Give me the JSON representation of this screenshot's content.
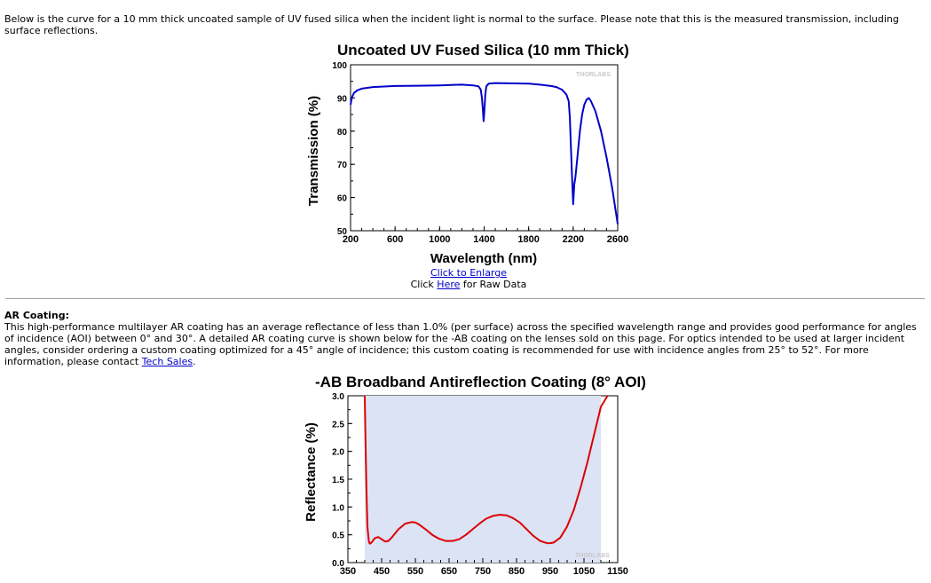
{
  "intro_text": "Below is the curve for a 10 mm thick uncoated sample of UV fused silica when the incident light is normal to the surface. Please note that this is the measured transmission, including surface reflections.",
  "links": {
    "enlarge": "Click to Enlarge",
    "raw_prefix": "Click ",
    "raw_link": "Here",
    "raw_suffix": " for Raw Data"
  },
  "ar_section": {
    "heading": "AR Coating:",
    "text": "This high-performance multilayer AR coating has an average reflectance of less than 1.0% (per surface) across the specified wavelength range and provides good performance for angles of incidence (AOI) between 0° and 30°. A detailed AR coating curve is shown below for the -AB coating on the lenses sold on this page. For optics intended to be used at larger incident angles, consider ordering a custom coating optimized for a 45° angle of incidence; this custom coating is recommended for use with incidence angles from 25° to 52°. For more information, please contact ",
    "link": "Tech Sales",
    "tail": "."
  },
  "chart_data": [
    {
      "type": "line",
      "title": "Uncoated UV Fused Silica (10 mm Thick)",
      "xlabel": "Wavelength (nm)",
      "ylabel": "Transmission (%)",
      "xlim": [
        200,
        2600
      ],
      "ylim": [
        50,
        100
      ],
      "xticks": [
        200,
        600,
        1000,
        1400,
        1800,
        2200,
        2600
      ],
      "yticks": [
        50,
        60,
        70,
        80,
        90,
        100
      ],
      "watermark": "THORLABS",
      "line_color": "#0000cc",
      "series": [
        {
          "x": [
            200,
            210,
            230,
            260,
            300,
            400,
            600,
            800,
            1000,
            1200,
            1300,
            1350,
            1370,
            1380,
            1390,
            1395,
            1400,
            1410,
            1420,
            1440,
            1500,
            1800,
            1900,
            2000,
            2050,
            2100,
            2140,
            2160,
            2170,
            2180,
            2190,
            2195,
            2200,
            2210,
            2220,
            2240,
            2260,
            2280,
            2300,
            2320,
            2340,
            2360,
            2400,
            2450,
            2500,
            2550,
            2600
          ],
          "y": [
            88,
            90,
            91.5,
            92.3,
            92.8,
            93.3,
            93.6,
            93.7,
            93.8,
            94,
            93.8,
            93.5,
            92.5,
            90,
            86,
            83,
            85,
            91,
            93.5,
            94.3,
            94.5,
            94.3,
            94,
            93.6,
            93.3,
            92.5,
            91,
            89,
            84,
            75,
            66,
            62,
            58,
            64,
            66,
            73,
            80,
            85,
            88,
            89.5,
            90,
            89,
            86,
            80,
            72,
            63,
            52
          ]
        }
      ]
    },
    {
      "type": "line",
      "title": "-AB Broadband Antireflection Coating (8° AOI)",
      "xlabel": "",
      "ylabel": "Reflectance (%)",
      "xlim": [
        350,
        1150
      ],
      "ylim": [
        0,
        3
      ],
      "xticks": [
        350,
        450,
        550,
        650,
        750,
        850,
        950,
        1050,
        1150
      ],
      "yticks": [
        0.0,
        0.5,
        1.0,
        1.5,
        2.0,
        2.5,
        3.0
      ],
      "shaded_region": [
        400,
        1100
      ],
      "shade_color": "#dbe3f5",
      "watermark": "THORLABS",
      "line_color": "#dd0000",
      "series": [
        {
          "x": [
            400,
            402,
            405,
            408,
            412,
            415,
            420,
            430,
            440,
            450,
            460,
            470,
            480,
            500,
            520,
            540,
            550,
            560,
            580,
            600,
            620,
            640,
            660,
            680,
            700,
            720,
            740,
            760,
            780,
            800,
            820,
            840,
            860,
            880,
            900,
            920,
            940,
            950,
            960,
            980,
            1000,
            1020,
            1040,
            1060,
            1080,
            1100,
            1120
          ],
          "y": [
            3.0,
            2.2,
            1.3,
            0.65,
            0.38,
            0.34,
            0.36,
            0.44,
            0.46,
            0.42,
            0.38,
            0.39,
            0.45,
            0.6,
            0.7,
            0.73,
            0.72,
            0.69,
            0.6,
            0.5,
            0.43,
            0.39,
            0.39,
            0.42,
            0.5,
            0.6,
            0.7,
            0.79,
            0.84,
            0.86,
            0.85,
            0.8,
            0.72,
            0.6,
            0.48,
            0.39,
            0.35,
            0.35,
            0.36,
            0.45,
            0.65,
            0.95,
            1.35,
            1.8,
            2.3,
            2.8,
            3.0
          ]
        }
      ]
    }
  ]
}
